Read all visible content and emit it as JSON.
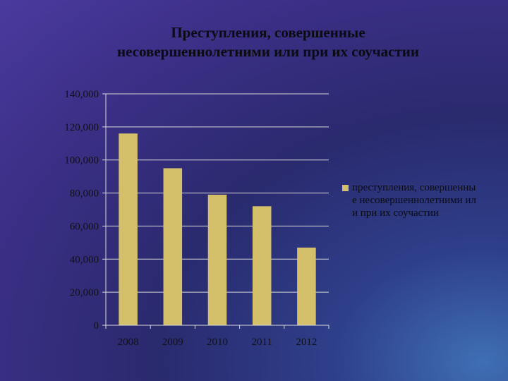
{
  "chart_data": {
    "type": "bar",
    "title": "Преступления, совершенные несовершеннолетними или при их соучастии",
    "categories": [
      "2008",
      "2009",
      "2010",
      "2011",
      "2012"
    ],
    "series": [
      {
        "name": "преступления, совершенные несовершеннолетними или при их соучастии",
        "values": [
          116000,
          95000,
          79000,
          72000,
          47000
        ]
      }
    ],
    "ylim": [
      0,
      140000
    ],
    "yticks": [
      "0",
      "20,000",
      "40,000",
      "60,000",
      "80,000",
      "100,000",
      "120,000",
      "140,000"
    ],
    "grid": true,
    "legend_position": "right",
    "colors": {
      "bar": "#d4c06a",
      "grid": "#d8d8d8",
      "text": "#0b0b12"
    }
  }
}
